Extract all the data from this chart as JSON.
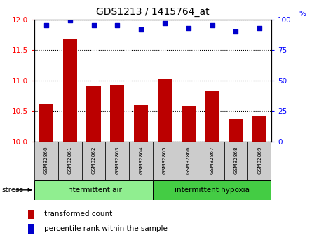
{
  "title": "GDS1213 / 1415764_at",
  "samples": [
    "GSM32860",
    "GSM32861",
    "GSM32862",
    "GSM32863",
    "GSM32864",
    "GSM32865",
    "GSM32866",
    "GSM32867",
    "GSM32868",
    "GSM32869"
  ],
  "transformed_counts": [
    10.62,
    11.68,
    10.92,
    10.93,
    10.6,
    11.03,
    10.58,
    10.82,
    10.38,
    10.42
  ],
  "percentile_ranks": [
    95,
    99,
    95,
    95,
    92,
    97,
    93,
    95,
    90,
    93
  ],
  "bar_color": "#bb0000",
  "dot_color": "#0000cc",
  "ylim_left": [
    10,
    12
  ],
  "ylim_right": [
    0,
    100
  ],
  "yticks_left": [
    10,
    10.5,
    11,
    11.5,
    12
  ],
  "yticks_right": [
    0,
    25,
    50,
    75,
    100
  ],
  "group1_label": "intermittent air",
  "group2_label": "intermittent hypoxia",
  "stress_label": "stress",
  "legend_bar_label": "transformed count",
  "legend_dot_label": "percentile rank within the sample",
  "group_bg_color": "#90ee90",
  "group2_bg_color": "#44cc44",
  "tick_label_bg": "#cccccc",
  "title_fontsize": 10,
  "axis_fontsize": 7.5,
  "label_fontsize": 7.5
}
